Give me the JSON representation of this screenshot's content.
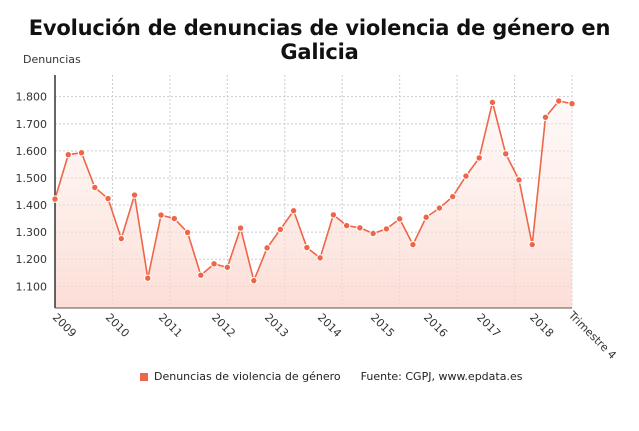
{
  "title": "Evolución de denuncias de violencia de género en Galicia",
  "source": "Fuente: CGPJ, www.epdata.es",
  "colors": {
    "line": "#ef6548",
    "fill": "#fbd5cc"
  },
  "chart_data": {
    "type": "area",
    "title": "Evolución de denuncias de violencia de género en Galicia",
    "ylabel": "Denuncias",
    "xlabel": "Trimestre 4",
    "ylim": [
      1020,
      1880
    ],
    "yticks": [
      1100,
      1200,
      1300,
      1400,
      1500,
      1600,
      1700,
      1800
    ],
    "ytick_labels": [
      "1.100",
      "1.200",
      "1.300",
      "1.400",
      "1.500",
      "1.600",
      "1.700",
      "1.800"
    ],
    "xtick_labels": [
      "2009",
      "2010",
      "2011",
      "2012",
      "2013",
      "2014",
      "2015",
      "2016",
      "2017",
      "2018"
    ],
    "grid": true,
    "legend_position": "bottom",
    "series": [
      {
        "name": "Denuncias de violencia de género",
        "values": [
          1422,
          1586,
          1593,
          1465,
          1424,
          1276,
          1437,
          1130,
          1363,
          1350,
          1299,
          1141,
          1183,
          1170,
          1315,
          1121,
          1242,
          1310,
          1379,
          1243,
          1205,
          1364,
          1324,
          1316,
          1295,
          1312,
          1349,
          1254,
          1355,
          1389,
          1431,
          1507,
          1574,
          1779,
          1589,
          1493,
          1254,
          1724,
          1784,
          1774
        ]
      }
    ]
  }
}
